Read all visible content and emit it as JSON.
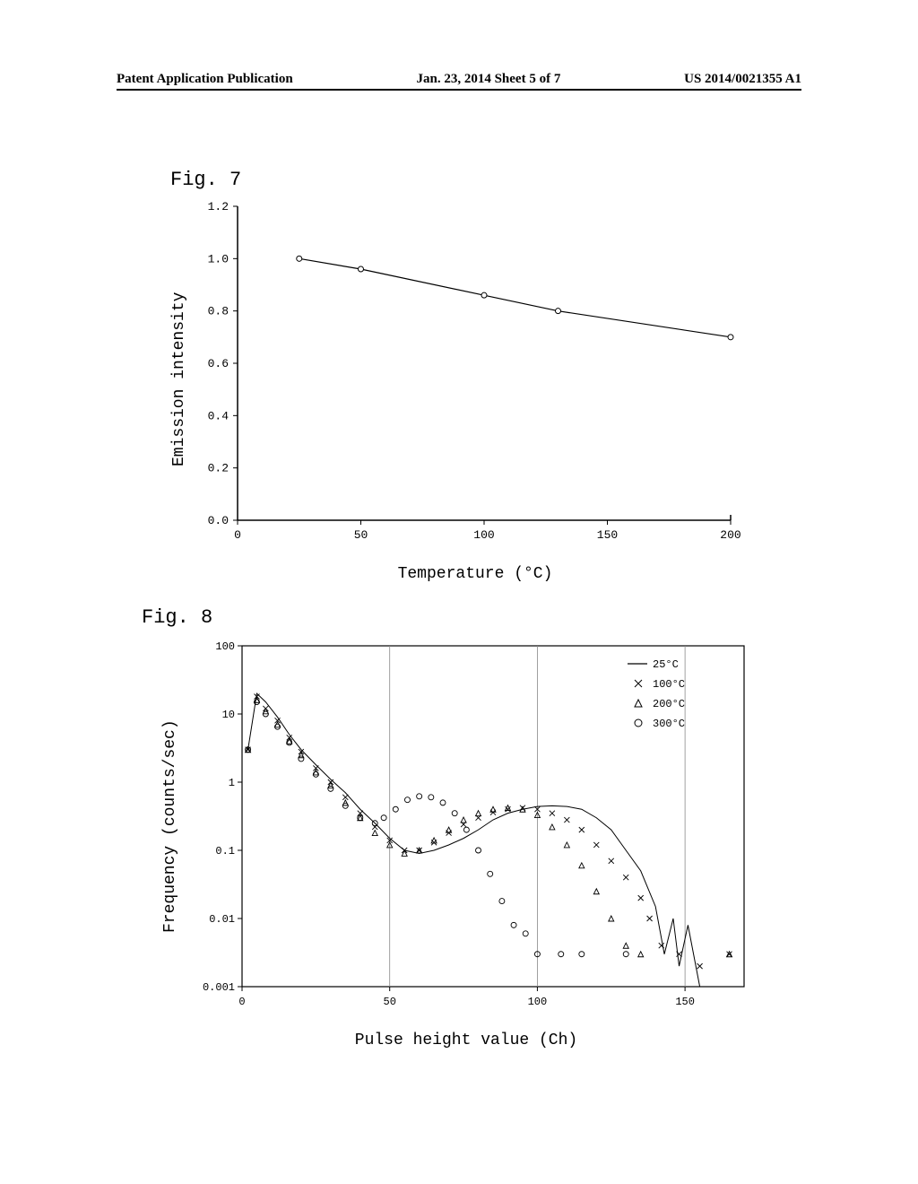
{
  "header": {
    "left": "Patent Application Publication",
    "center": "Jan. 23, 2014  Sheet 5 of 7",
    "right": "US 2014/0021355 A1"
  },
  "fig7": {
    "label": "Fig.  7",
    "ylabel": "Emission intensity",
    "xlabel": "Temperature (°C)",
    "xlim": [
      0,
      200
    ],
    "ylim": [
      0.0,
      1.2
    ],
    "xticks": [
      0,
      50,
      100,
      150,
      200
    ],
    "yticks": [
      "0.0",
      "0.2",
      "0.4",
      "0.6",
      "0.8",
      "1.0",
      "1.2"
    ],
    "data_x": [
      25,
      50,
      100,
      130,
      200
    ],
    "data_y": [
      1.0,
      0.96,
      0.86,
      0.8,
      0.7
    ],
    "line_color": "#000000",
    "marker_color": "#ffffff",
    "marker_edge": "#000000",
    "background": "#ffffff"
  },
  "fig8": {
    "label": "Fig.  8",
    "ylabel": "Frequency (counts/sec)",
    "xlabel": "Pulse height value (Ch)",
    "xlim": [
      0,
      170
    ],
    "ylim_log": [
      0.001,
      100
    ],
    "xticks": [
      0,
      50,
      100,
      150
    ],
    "yticks": [
      "0.001",
      "0.01",
      "0.1",
      "1",
      "10",
      "100"
    ],
    "grid_x": [
      50,
      100,
      150
    ],
    "grid_color": "#888888",
    "legend": [
      {
        "label": "25°C",
        "marker": "line"
      },
      {
        "label": "100°C",
        "marker": "x"
      },
      {
        "label": "200°C",
        "marker": "triangle"
      },
      {
        "label": "300°C",
        "marker": "circle"
      }
    ],
    "series_line_25": [
      [
        2,
        3
      ],
      [
        5,
        20
      ],
      [
        8,
        15
      ],
      [
        12,
        9
      ],
      [
        16,
        5
      ],
      [
        20,
        3
      ],
      [
        25,
        1.8
      ],
      [
        30,
        1.1
      ],
      [
        35,
        0.7
      ],
      [
        40,
        0.4
      ],
      [
        45,
        0.25
      ],
      [
        50,
        0.15
      ],
      [
        55,
        0.1
      ],
      [
        60,
        0.09
      ],
      [
        65,
        0.1
      ],
      [
        70,
        0.12
      ],
      [
        75,
        0.15
      ],
      [
        80,
        0.2
      ],
      [
        85,
        0.28
      ],
      [
        90,
        0.35
      ],
      [
        95,
        0.4
      ],
      [
        100,
        0.44
      ],
      [
        105,
        0.45
      ],
      [
        110,
        0.44
      ],
      [
        115,
        0.4
      ],
      [
        120,
        0.3
      ],
      [
        125,
        0.2
      ],
      [
        130,
        0.1
      ],
      [
        135,
        0.05
      ],
      [
        140,
        0.015
      ],
      [
        143,
        0.003
      ],
      [
        146,
        0.01
      ],
      [
        148,
        0.002
      ],
      [
        151,
        0.008
      ],
      [
        155,
        0.001
      ]
    ],
    "series_x_100": [
      [
        2,
        3
      ],
      [
        5,
        18
      ],
      [
        8,
        12
      ],
      [
        12,
        8
      ],
      [
        16,
        4.5
      ],
      [
        20,
        2.8
      ],
      [
        25,
        1.6
      ],
      [
        30,
        1.0
      ],
      [
        35,
        0.6
      ],
      [
        40,
        0.35
      ],
      [
        45,
        0.22
      ],
      [
        50,
        0.14
      ],
      [
        55,
        0.1
      ],
      [
        60,
        0.1
      ],
      [
        65,
        0.13
      ],
      [
        70,
        0.18
      ],
      [
        75,
        0.24
      ],
      [
        80,
        0.3
      ],
      [
        85,
        0.36
      ],
      [
        90,
        0.4
      ],
      [
        95,
        0.42
      ],
      [
        100,
        0.4
      ],
      [
        105,
        0.35
      ],
      [
        110,
        0.28
      ],
      [
        115,
        0.2
      ],
      [
        120,
        0.12
      ],
      [
        125,
        0.07
      ],
      [
        130,
        0.04
      ],
      [
        135,
        0.02
      ],
      [
        138,
        0.01
      ],
      [
        142,
        0.004
      ],
      [
        148,
        0.003
      ],
      [
        155,
        0.002
      ],
      [
        165,
        0.003
      ]
    ],
    "series_tri_200": [
      [
        2,
        3
      ],
      [
        5,
        16
      ],
      [
        8,
        11
      ],
      [
        12,
        7
      ],
      [
        16,
        4
      ],
      [
        20,
        2.5
      ],
      [
        25,
        1.4
      ],
      [
        30,
        0.9
      ],
      [
        35,
        0.5
      ],
      [
        40,
        0.3
      ],
      [
        45,
        0.18
      ],
      [
        50,
        0.12
      ],
      [
        55,
        0.09
      ],
      [
        60,
        0.1
      ],
      [
        65,
        0.14
      ],
      [
        70,
        0.2
      ],
      [
        75,
        0.28
      ],
      [
        80,
        0.35
      ],
      [
        85,
        0.4
      ],
      [
        90,
        0.42
      ],
      [
        95,
        0.4
      ],
      [
        100,
        0.33
      ],
      [
        105,
        0.22
      ],
      [
        110,
        0.12
      ],
      [
        115,
        0.06
      ],
      [
        120,
        0.025
      ],
      [
        125,
        0.01
      ],
      [
        130,
        0.004
      ],
      [
        135,
        0.003
      ],
      [
        165,
        0.003
      ]
    ],
    "series_circ_300": [
      [
        2,
        3
      ],
      [
        5,
        15
      ],
      [
        8,
        10
      ],
      [
        12,
        6.5
      ],
      [
        16,
        3.8
      ],
      [
        20,
        2.2
      ],
      [
        25,
        1.3
      ],
      [
        30,
        0.8
      ],
      [
        35,
        0.45
      ],
      [
        40,
        0.3
      ],
      [
        45,
        0.25
      ],
      [
        48,
        0.3
      ],
      [
        52,
        0.4
      ],
      [
        56,
        0.55
      ],
      [
        60,
        0.62
      ],
      [
        64,
        0.6
      ],
      [
        68,
        0.5
      ],
      [
        72,
        0.35
      ],
      [
        76,
        0.2
      ],
      [
        80,
        0.1
      ],
      [
        84,
        0.045
      ],
      [
        88,
        0.018
      ],
      [
        92,
        0.008
      ],
      [
        96,
        0.006
      ],
      [
        100,
        0.003
      ],
      [
        108,
        0.003
      ],
      [
        115,
        0.003
      ],
      [
        130,
        0.003
      ]
    ],
    "marker_color": "#000000",
    "background": "#ffffff"
  }
}
